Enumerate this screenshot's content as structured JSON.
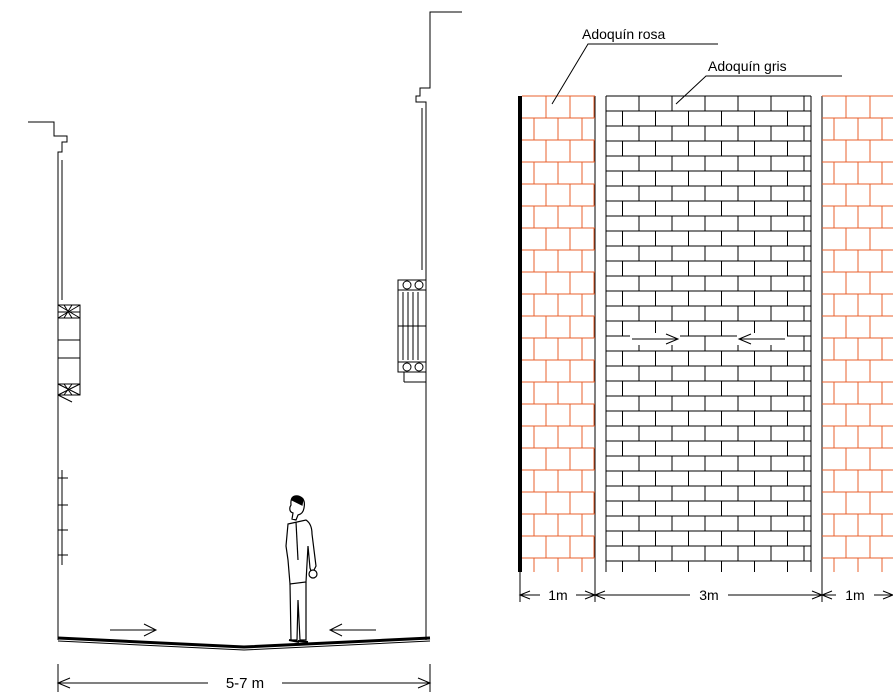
{
  "section": {
    "width_label": "5-7 m"
  },
  "plan": {
    "label_pink": "Adoquín rosa",
    "label_gray": "Adoquín gris",
    "dim_left": "1m",
    "dim_center": "3m",
    "dim_right": "1m"
  },
  "colors": {
    "pink_paving": "#e8602c",
    "gray_paving": "#000000",
    "line": "#000000"
  }
}
